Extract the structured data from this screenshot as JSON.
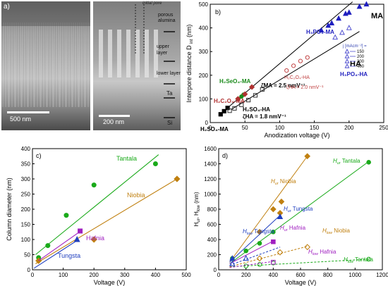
{
  "panel_a": {
    "label": "a)",
    "left_scale": "500 nm",
    "right_scale": "200 nm",
    "labels": [
      "initial pore",
      "porous alumina",
      "upper layer",
      "lower layer",
      "Ta",
      "Si"
    ]
  },
  "chart_data": [
    {
      "id": "b",
      "type": "scatter",
      "panel_label": "b)",
      "xlabel": "Anodization voltage (V)",
      "ylabel": "Interpore distance D",
      "ylabel_sub": "int",
      "ylabel_unit": "(nm)",
      "xlim": [
        0,
        250
      ],
      "ylim": [
        0,
        500
      ],
      "xticks": [
        0,
        50,
        100,
        150,
        200,
        250
      ],
      "yticks": [
        0,
        100,
        200,
        300,
        400,
        500
      ],
      "grid": false,
      "legend": {
        "title": "j [mAcm⁻²] =",
        "entries": [
          "150",
          "200",
          "300",
          "400"
        ],
        "caption": "H₃PO₄-HA"
      },
      "annotations": [
        {
          "text": "MA",
          "color": "#000000"
        },
        {
          "text": "HA",
          "color": "#000000"
        },
        {
          "text": "H₃PO₄-MA",
          "color": "#1f1fbf"
        },
        {
          "text": "ζMA = 2.5 nmV⁻¹",
          "color": "#000000"
        },
        {
          "text": "H₂SeO₄-MA",
          "color": "#1a8a1a"
        },
        {
          "text": "H₂C₂O₄-MA",
          "color": "#b03030"
        },
        {
          "text": "H₂C₂O₄-HA",
          "color": "#c04040"
        },
        {
          "text": "ζHA = 2.0 nmV⁻¹",
          "color": "#c04040"
        },
        {
          "text": "H₂SO₄-HA",
          "color": "#000000"
        },
        {
          "text": "ζHA = 1.8 nmV⁻¹",
          "color": "#000000"
        },
        {
          "text": "H₂SO₄-MA",
          "color": "#000000"
        }
      ],
      "series": [
        {
          "kind": "line",
          "color": "#000000",
          "x": [
            20,
            205
          ],
          "y": [
            50,
            510
          ]
        },
        {
          "kind": "line",
          "color": "#000000",
          "x": [
            30,
            215
          ],
          "y": [
            55,
            385
          ]
        },
        {
          "kind": "square-filled",
          "color": "#000000",
          "x": [
            15,
            20,
            25
          ],
          "y": [
            35,
            48,
            62
          ]
        },
        {
          "kind": "circle-filled",
          "color": "#1a8a1a",
          "x": [
            40,
            45,
            48
          ],
          "y": [
            100,
            110,
            118
          ]
        },
        {
          "kind": "diamond-filled",
          "color": "#b03030",
          "x": [
            40,
            50,
            60
          ],
          "y": [
            100,
            120,
            150
          ]
        },
        {
          "kind": "square-open",
          "color": "#333333",
          "x": [
            28,
            35,
            45,
            55,
            65,
            75
          ],
          "y": [
            50,
            60,
            75,
            95,
            115,
            140
          ]
        },
        {
          "kind": "circle-open",
          "color": "#c04040",
          "x": [
            110,
            120,
            130,
            140
          ],
          "y": [
            220,
            240,
            260,
            275
          ]
        },
        {
          "kind": "triangle-filled",
          "color": "#1f1fbf",
          "x": [
            160,
            170,
            175,
            185,
            195,
            200,
            215,
            225
          ],
          "y": [
            390,
            410,
            420,
            440,
            460,
            465,
            490,
            500
          ]
        },
        {
          "kind": "triangle-open",
          "color": "#5050d0",
          "x": [
            180,
            190,
            200
          ],
          "y": [
            360,
            380,
            400
          ]
        }
      ]
    },
    {
      "id": "c",
      "type": "scatter",
      "panel_label": "c)",
      "xlabel": "Voltage (V)",
      "ylabel": "Column diameter (nm)",
      "xlim": [
        0,
        500
      ],
      "ylim": [
        0,
        400
      ],
      "xticks": [
        0,
        100,
        200,
        300,
        400,
        500
      ],
      "yticks": [
        0,
        50,
        100,
        150,
        200,
        250,
        300,
        350,
        400
      ],
      "grid": false,
      "annotations": [
        {
          "text": "Tantala",
          "color": "#1aaa1a"
        },
        {
          "text": "Niobia",
          "color": "#c08010"
        },
        {
          "text": "Hafnia",
          "color": "#a020c0"
        },
        {
          "text": "Tungsta",
          "color": "#1f3fbf"
        }
      ],
      "series": [
        {
          "name": "Tantala",
          "color": "#1aaa1a",
          "marker": "circle",
          "x": [
            20,
            50,
            110,
            200,
            400
          ],
          "y": [
            40,
            80,
            180,
            280,
            350
          ],
          "fit": [
            [
              10,
              50
            ],
            [
              410,
              380
            ]
          ]
        },
        {
          "name": "Niobia",
          "color": "#c08010",
          "marker": "diamond",
          "x": [
            20,
            200,
            470
          ],
          "y": [
            30,
            100,
            300
          ],
          "fit": [
            [
              10,
              20
            ],
            [
              470,
              300
            ]
          ]
        },
        {
          "name": "Hafnia",
          "color": "#a020c0",
          "marker": "square",
          "x": [
            155
          ],
          "y": [
            128
          ],
          "fit": [
            [
              20,
              30
            ],
            [
              160,
              130
            ]
          ]
        },
        {
          "name": "Tungsta",
          "color": "#1f3fbf",
          "marker": "triangle",
          "x": [
            145
          ],
          "y": [
            100
          ],
          "fit": [
            [
              5,
              5
            ],
            [
              150,
              100
            ]
          ]
        }
      ]
    },
    {
      "id": "d",
      "type": "scatter",
      "panel_label": "d)",
      "xlabel": "Voltage (V)",
      "ylabel": "H",
      "ylabel_parts": [
        "H",
        "ur",
        ", H",
        "low",
        " (nm)"
      ],
      "xlim": [
        0,
        1200
      ],
      "ylim": [
        0,
        1600
      ],
      "xticks": [
        0,
        200,
        400,
        600,
        800,
        1000,
        1200
      ],
      "yticks": [
        0,
        200,
        400,
        600,
        800,
        1000,
        1200,
        1400,
        1600
      ],
      "grid": false,
      "annotations": [
        {
          "text": "Hur Niobia",
          "color": "#c08010"
        },
        {
          "text": "Hur Tantala",
          "color": "#1aaa1a"
        },
        {
          "text": "Hur Tungsta",
          "color": "#1f3fbf"
        },
        {
          "text": "Hur Hafnia",
          "color": "#a020c0"
        },
        {
          "text": "Hlow Tungsta",
          "color": "#1f3fbf"
        },
        {
          "text": "Hlow Niobia",
          "color": "#c08010"
        },
        {
          "text": "Hlow Hafnia",
          "color": "#a020c0"
        },
        {
          "text": "Hlow Tantala",
          "color": "#1aaa1a"
        }
      ],
      "series": [
        {
          "name": "Hur Tantala",
          "color": "#1aaa1a",
          "marker": "circle",
          "filled": true,
          "dashed": false,
          "x": [
            100,
            200,
            300,
            400,
            1100
          ],
          "y": [
            150,
            250,
            350,
            500,
            1420
          ],
          "fit": [
            [
              80,
              80
            ],
            [
              1100,
              1430
            ]
          ]
        },
        {
          "name": "Hur Niobia",
          "color": "#c08010",
          "marker": "diamond",
          "filled": true,
          "dashed": false,
          "x": [
            300,
            400,
            450,
            460,
            650
          ],
          "y": [
            500,
            800,
            750,
            900,
            1500
          ],
          "fit": [
            [
              80,
              100
            ],
            [
              650,
              1500
            ]
          ]
        },
        {
          "name": "Hur Tungsta",
          "color": "#1f3fbf",
          "marker": "triangle",
          "filled": true,
          "dashed": false,
          "x": [
            100,
            450
          ],
          "y": [
            150,
            700
          ],
          "fit": [
            [
              80,
              100
            ],
            [
              450,
              720
            ]
          ]
        },
        {
          "name": "Hur Hafnia",
          "color": "#a020c0",
          "marker": "square",
          "filled": true,
          "dashed": false,
          "x": [
            400
          ],
          "y": [
            370
          ],
          "fit": [
            [
              80,
              80
            ],
            [
              400,
              380
            ]
          ]
        },
        {
          "name": "Hlow Tantala",
          "color": "#1aaa1a",
          "marker": "circle",
          "filled": false,
          "dashed": true,
          "x": [
            200,
            300,
            400,
            1100
          ],
          "y": [
            50,
            70,
            90,
            140
          ],
          "fit": [
            [
              80,
              40
            ],
            [
              1100,
              140
            ]
          ]
        },
        {
          "name": "Hlow Niobia",
          "color": "#c08010",
          "marker": "diamond",
          "filled": false,
          "dashed": true,
          "x": [
            300,
            450,
            650
          ],
          "y": [
            150,
            230,
            300
          ],
          "fit": [
            [
              80,
              40
            ],
            [
              650,
              310
            ]
          ]
        },
        {
          "name": "Hlow Hafnia",
          "color": "#a020c0",
          "marker": "square",
          "filled": false,
          "dashed": true,
          "x": [
            400
          ],
          "y": [
            100
          ],
          "fit": [
            [
              80,
              30
            ],
            [
              400,
              110
            ]
          ]
        },
        {
          "name": "Hlow Tungsta",
          "color": "#1f3fbf",
          "marker": "triangle",
          "filled": false,
          "dashed": true,
          "x": [
            100,
            200
          ],
          "y": [
            80,
            150
          ],
          "fit": [
            [
              80,
              60
            ],
            [
              450,
              300
            ]
          ]
        }
      ]
    }
  ]
}
